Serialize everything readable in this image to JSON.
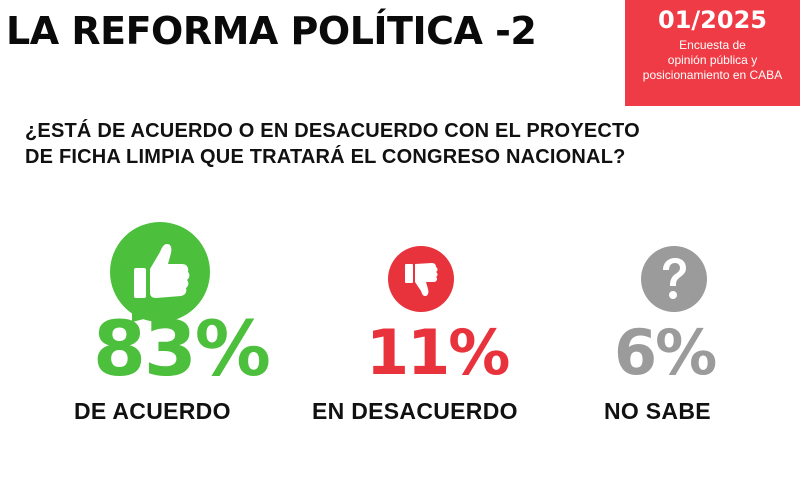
{
  "title": "LA REFORMA POLÍTICA -2",
  "badge": {
    "date": "01/2025",
    "line1": "Encuesta de",
    "line2": "opinión pública y",
    "line3": "posicionamiento en CABA"
  },
  "question": {
    "line1": "¿ESTÁ DE ACUERDO O EN DESACUERDO CON EL PROYECTO",
    "line2": "DE FICHA LIMPIA QUE TRATARÁ EL CONGRESO NACIONAL?"
  },
  "colors": {
    "agree": "#4cc03c",
    "disagree": "#e8333d",
    "unknown": "#9b9b9b",
    "badge": "#ef3b45"
  },
  "icons": {
    "agree": "thumbs-up-icon",
    "disagree": "thumbs-down-icon",
    "unknown": "question-mark-icon"
  },
  "chart_data": {
    "type": "bar",
    "title": "",
    "categories": [
      "DE ACUERDO",
      "EN DESACUERDO",
      "NO SABE"
    ],
    "values": [
      83,
      11,
      6
    ],
    "value_labels": [
      "83%",
      "11%",
      "6%"
    ],
    "unit": "%"
  }
}
